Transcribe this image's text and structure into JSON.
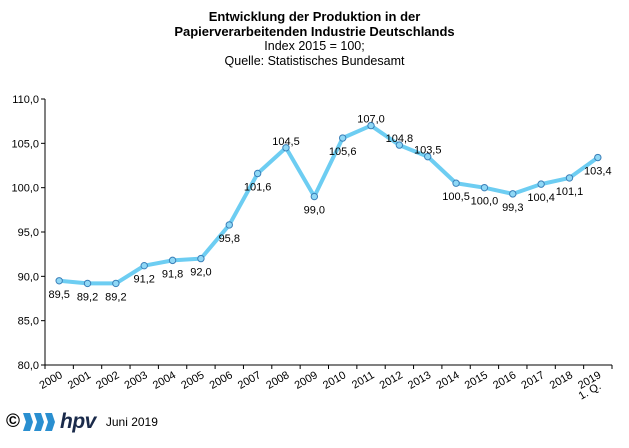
{
  "header": {
    "title_line1": "Entwicklung der Produktion in der",
    "title_line2": "Papierverarbeitenden Industrie Deutschlands",
    "subtitle_line1": "Index 2015 = 100;",
    "subtitle_line2": "Quelle: Statistisches Bundesamt"
  },
  "footer": {
    "copyright_symbol": "©",
    "brand": "hpv",
    "date": "Juni 2019"
  },
  "colors": {
    "line": "#6dcdf2",
    "marker_fill": "#8fd8f6",
    "marker_stroke": "#3a7fb8",
    "axis": "#000000"
  },
  "chart_data": {
    "type": "line",
    "title": "Entwicklung der Produktion in der Papierverarbeitenden Industrie Deutschlands",
    "categories": [
      "2000",
      "2001",
      "2002",
      "2003",
      "2004",
      "2005",
      "2006",
      "2007",
      "2008",
      "2009",
      "2010",
      "2011",
      "2012",
      "2013",
      "2014",
      "2015",
      "2016",
      "2017",
      "2018",
      "2019"
    ],
    "last_category_line2": "1. Q.",
    "series": [
      {
        "values": [
          89.5,
          89.2,
          89.2,
          91.2,
          91.8,
          92.0,
          95.8,
          101.6,
          104.5,
          99.0,
          105.6,
          107.0,
          104.8,
          103.5,
          100.5,
          100.0,
          99.3,
          100.4,
          101.1,
          103.4
        ],
        "labels": [
          "89,5",
          "89,2",
          "89,2",
          "91,2",
          "91,8",
          "92,0",
          "95,8",
          "101,6",
          "104,5",
          "99,0",
          "105,6",
          "107,0",
          "104,8",
          "103,5",
          "100,5",
          "100,0",
          "99,3",
          "100,4",
          "101,1",
          "103,4"
        ]
      }
    ],
    "ylim": [
      80,
      110
    ],
    "yticks": [
      80,
      85,
      90,
      95,
      100,
      105,
      110
    ],
    "ytick_labels": [
      "80,0",
      "85,0",
      "90,0",
      "95,0",
      "100,0",
      "105,0",
      "110,0"
    ],
    "grid": false,
    "legend": "none"
  }
}
